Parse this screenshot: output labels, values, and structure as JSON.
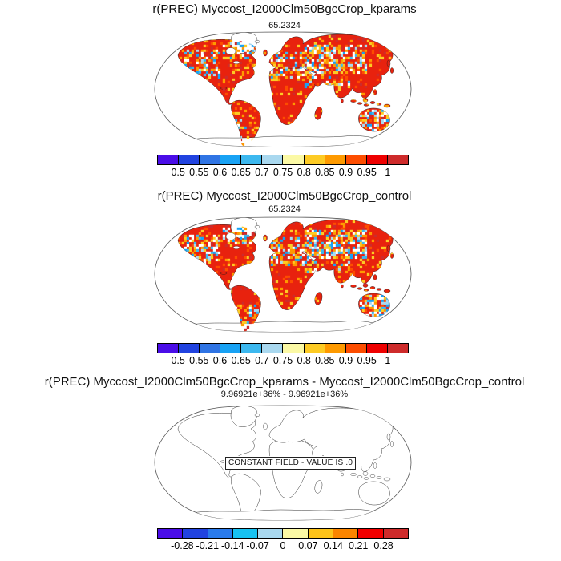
{
  "figure": {
    "background": "#ffffff"
  },
  "panels": [
    {
      "title": "r(PREC) Myccost_I2000Clm50BgcCrop_kparams",
      "subtitle": "65.2324",
      "map_type": "filled",
      "colorbar": {
        "colors": [
          "#4A0DE8",
          "#2143E0",
          "#2F74E4",
          "#18A2F4",
          "#3CB8EF",
          "#A9D8EF",
          "#FBF9A5",
          "#FDCB24",
          "#FE9A00",
          "#FD4D00",
          "#EE0000",
          "#CE2B2B"
        ],
        "ticks": [
          "0.5",
          "0.55",
          "0.6",
          "0.65",
          "0.7",
          "0.75",
          "0.8",
          "0.85",
          "0.9",
          "0.95",
          "1"
        ]
      }
    },
    {
      "title": "r(PREC) Myccost_I2000Clm50BgcCrop_control",
      "subtitle": "65.2324",
      "map_type": "filled",
      "colorbar": {
        "colors": [
          "#4A0DE8",
          "#2143E0",
          "#2F74E4",
          "#18A2F4",
          "#3CB8EF",
          "#A9D8EF",
          "#FBF9A5",
          "#FDCB24",
          "#FE9A00",
          "#FD4D00",
          "#EE0000",
          "#CE2B2B"
        ],
        "ticks": [
          "0.5",
          "0.55",
          "0.6",
          "0.65",
          "0.7",
          "0.75",
          "0.8",
          "0.85",
          "0.9",
          "0.95",
          "1"
        ]
      }
    },
    {
      "title": "r(PREC) Myccost_I2000Clm50BgcCrop_kparams - Myccost_I2000Clm50BgcCrop_control",
      "subtitle": "9.96921e+36% - 9.96921e+36%",
      "map_type": "outline",
      "annotation": "CONSTANT FIELD - VALUE IS .0",
      "colorbar": {
        "colors": [
          "#4A0DE8",
          "#2143E0",
          "#2A7BEC",
          "#17C2F2",
          "#A9D8EF",
          "#FBF9A5",
          "#FDC31A",
          "#FB8500",
          "#F20000",
          "#CE2B2B"
        ],
        "ticks": [
          "-0.28",
          "-0.21",
          "-0.14",
          "-0.07",
          "0",
          "0.07",
          "0.14",
          "0.21",
          "0.28"
        ]
      }
    }
  ],
  "map_colors": {
    "ocean": "#ffffff",
    "coast": "#1a1a1a",
    "outline": "#555555",
    "land_fill": "#E8220E",
    "speckle_region": [
      "#ffffff",
      "#ffffff",
      "#A9D8EF",
      "#3CB8EF",
      "#18A2F4",
      "#FDCB24",
      "#FE9A00"
    ],
    "speckle_global": [
      "#FE9A00",
      "#FD4D00",
      "#FDCB24",
      "#CE2B2B"
    ]
  },
  "chart_data": [
    {
      "type": "heatmap",
      "subtype": "global-map-robinson",
      "title": "r(PREC) Myccost_I2000Clm50BgcCrop_kparams",
      "subtitle_value": "65.2324",
      "colorbar_levels": [
        0.5,
        0.55,
        0.6,
        0.65,
        0.7,
        0.75,
        0.8,
        0.85,
        0.9,
        0.95,
        1
      ],
      "colorbar_colors": [
        "#4A0DE8",
        "#2143E0",
        "#2F74E4",
        "#18A2F4",
        "#3CB8EF",
        "#A9D8EF",
        "#FBF9A5",
        "#FDCB24",
        "#FE9A00",
        "#FD4D00",
        "#EE0000",
        "#CE2B2B"
      ],
      "legend_position": "bottom",
      "description": "Correlation of PREC over land; most land in 0.9-1 bins (red), scattered 0.5-0.8 (blue/cyan/white) patches over central Asia, Sahara margin, western North America, interior Australia; oceans, Greenland and Antarctica unfilled"
    },
    {
      "type": "heatmap",
      "subtype": "global-map-robinson",
      "title": "r(PREC) Myccost_I2000Clm50BgcCrop_control",
      "subtitle_value": "65.2324",
      "colorbar_levels": [
        0.5,
        0.55,
        0.6,
        0.65,
        0.7,
        0.75,
        0.8,
        0.85,
        0.9,
        0.95,
        1
      ],
      "colorbar_colors": [
        "#4A0DE8",
        "#2143E0",
        "#2F74E4",
        "#18A2F4",
        "#3CB8EF",
        "#A9D8EF",
        "#FBF9A5",
        "#FDCB24",
        "#FE9A00",
        "#FD4D00",
        "#EE0000",
        "#CE2B2B"
      ],
      "legend_position": "bottom",
      "description": "Same field for control run; visually similar red-dominated land pattern with slightly more low-correlation speckle in central Asia"
    },
    {
      "type": "heatmap",
      "subtype": "global-map-robinson",
      "title": "r(PREC) Myccost_I2000Clm50BgcCrop_kparams - Myccost_I2000Clm50BgcCrop_control",
      "subtitle_value": "9.96921e+36% - 9.96921e+36%",
      "annotation": "CONSTANT FIELD - VALUE IS .0",
      "constant_value": 0,
      "colorbar_levels": [
        -0.28,
        -0.21,
        -0.14,
        -0.07,
        0,
        0.07,
        0.14,
        0.21,
        0.28
      ],
      "colorbar_colors": [
        "#4A0DE8",
        "#2143E0",
        "#2A7BEC",
        "#17C2F2",
        "#A9D8EF",
        "#FBF9A5",
        "#FDC31A",
        "#FB8500",
        "#F20000",
        "#CE2B2B"
      ],
      "legend_position": "bottom",
      "description": "Difference map is a constant field of 0; map drawn as coastlines only"
    }
  ]
}
